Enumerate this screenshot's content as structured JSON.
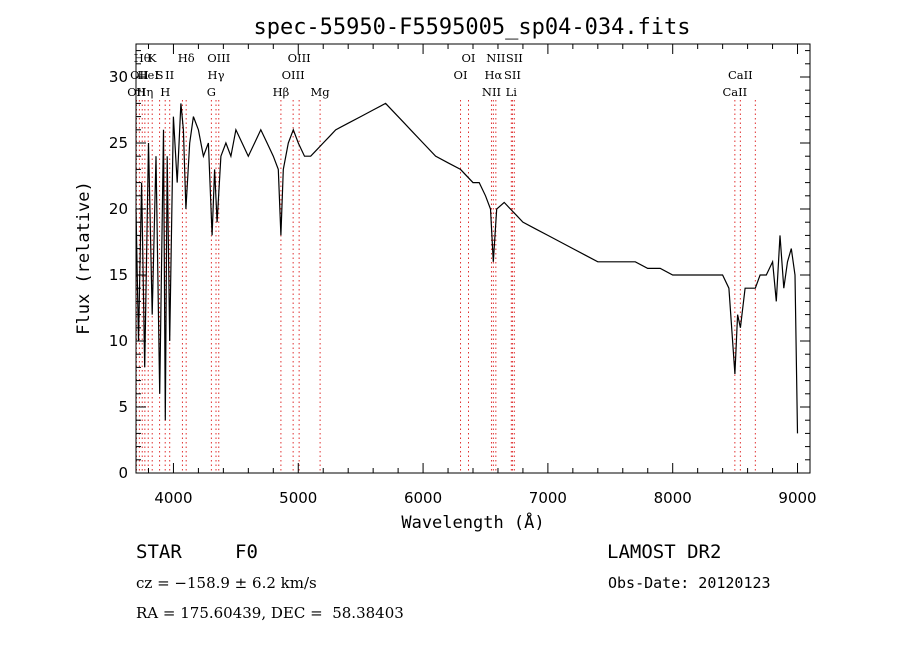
{
  "chart_data": {
    "type": "line",
    "title": "spec-55950-F5595005_sp04-034.fits",
    "xlabel": "Wavelength (Å)",
    "ylabel": "Flux (relative)",
    "xlim": [
      3700,
      9100
    ],
    "ylim": [
      0,
      32.5
    ],
    "xticks": [
      4000,
      5000,
      6000,
      7000,
      8000,
      9000
    ],
    "yticks": [
      0,
      5,
      10,
      15,
      20,
      25,
      30
    ],
    "grid": false,
    "series": [
      {
        "x": [
          3700,
          3720,
          3745,
          3770,
          3800,
          3830,
          3860,
          3890,
          3920,
          3935,
          3950,
          3970,
          4000,
          4030,
          4060,
          4080,
          4100,
          4130,
          4160,
          4200,
          4240,
          4280,
          4310,
          4330,
          4350,
          4380,
          4420,
          4460,
          4500,
          4550,
          4600,
          4650,
          4700,
          4750,
          4800,
          4840,
          4861,
          4880,
          4920,
          4960,
          5000,
          5050,
          5100,
          5150,
          5200,
          5250,
          5300,
          5400,
          5500,
          5600,
          5700,
          5800,
          5850,
          5900,
          6000,
          6100,
          6200,
          6300,
          6400,
          6450,
          6500,
          6540,
          6563,
          6590,
          6650,
          6700,
          6750,
          6800,
          6900,
          7000,
          7100,
          7200,
          7300,
          7400,
          7500,
          7600,
          7700,
          7800,
          7900,
          8000,
          8100,
          8200,
          8300,
          8400,
          8450,
          8498,
          8520,
          8542,
          8580,
          8620,
          8662,
          8700,
          8750,
          8800,
          8830,
          8860,
          8890,
          8920,
          8950,
          8980,
          9000
        ],
        "y": [
          20,
          10,
          22,
          8,
          25,
          12,
          24,
          6,
          26,
          4,
          24,
          10,
          27,
          22,
          28,
          26,
          20,
          25,
          27,
          26,
          24,
          25,
          18,
          23,
          19,
          24,
          25,
          24,
          26,
          25,
          24,
          25,
          26,
          25,
          24,
          23,
          18,
          23,
          25,
          26,
          25,
          24,
          24,
          24.5,
          25,
          25.5,
          26,
          26.5,
          27,
          27.5,
          28,
          27,
          26.5,
          26,
          25,
          24,
          23.5,
          23,
          22,
          22,
          21,
          20,
          16,
          20,
          20.5,
          20,
          19.5,
          19,
          18.5,
          18,
          17.5,
          17,
          16.5,
          16,
          16,
          16,
          16,
          15.5,
          15.5,
          15,
          15,
          15,
          15,
          15,
          14,
          7.5,
          12,
          11,
          14,
          14,
          14,
          15,
          15,
          16,
          13,
          18,
          14,
          16,
          17,
          15,
          3
        ]
      }
    ],
    "line_marks": [
      {
        "wave": 3704,
        "label": "OII",
        "row": 2
      },
      {
        "wave": 3727,
        "label": "OII",
        "row": 1
      },
      {
        "wave": 3750,
        "label": "Hθ",
        "row": 0
      },
      {
        "wave": 3771,
        "label": "Hη",
        "row": 2
      },
      {
        "wave": 3798,
        "label": "HeI",
        "row": 1
      },
      {
        "wave": 3830,
        "label": "K",
        "row": 0
      },
      {
        "wave": 3889,
        "label": "S",
        "row": 1
      },
      {
        "wave": 3934,
        "label": "H",
        "row": 2
      },
      {
        "wave": 3970,
        "label": "II",
        "row": 1
      },
      {
        "wave": 4072,
        "label": "",
        "row": 0
      },
      {
        "wave": 4102,
        "label": "Hδ",
        "row": 0
      },
      {
        "wave": 4304,
        "label": "G",
        "row": 2
      },
      {
        "wave": 4341,
        "label": "Hγ",
        "row": 1
      },
      {
        "wave": 4363,
        "label": "OIII",
        "row": 0
      },
      {
        "wave": 4861,
        "label": "Hβ",
        "row": 2
      },
      {
        "wave": 4959,
        "label": "OIII",
        "row": 1
      },
      {
        "wave": 5007,
        "label": "OIII",
        "row": 0
      },
      {
        "wave": 5175,
        "label": "Mg",
        "row": 2
      },
      {
        "wave": 6300,
        "label": "OI",
        "row": 1
      },
      {
        "wave": 6364,
        "label": "OI",
        "row": 0
      },
      {
        "wave": 6548,
        "label": "NII",
        "row": 2
      },
      {
        "wave": 6563,
        "label": "Hα",
        "row": 1
      },
      {
        "wave": 6583,
        "label": "NII",
        "row": 0
      },
      {
        "wave": 6707,
        "label": "Li",
        "row": 2
      },
      {
        "wave": 6716,
        "label": "SII",
        "row": 1
      },
      {
        "wave": 6731,
        "label": "SII",
        "row": 0
      },
      {
        "wave": 8498,
        "label": "CaII",
        "row": 2
      },
      {
        "wave": 8542,
        "label": "CaII",
        "row": 1
      },
      {
        "wave": 8662,
        "label": "",
        "row": 0
      }
    ]
  },
  "footer": {
    "object_class": "STAR",
    "subclass": "F0",
    "survey": "LAMOST DR2",
    "cz": "cz = −158.9 ± 6.2 km/s",
    "obs_date": "Obs-Date: 20120123",
    "coords": "RA = 175.60439, DEC =  58.38403"
  },
  "colors": {
    "spectrum": "#000000",
    "line_markers": "#e03030",
    "axes": "#000000"
  }
}
